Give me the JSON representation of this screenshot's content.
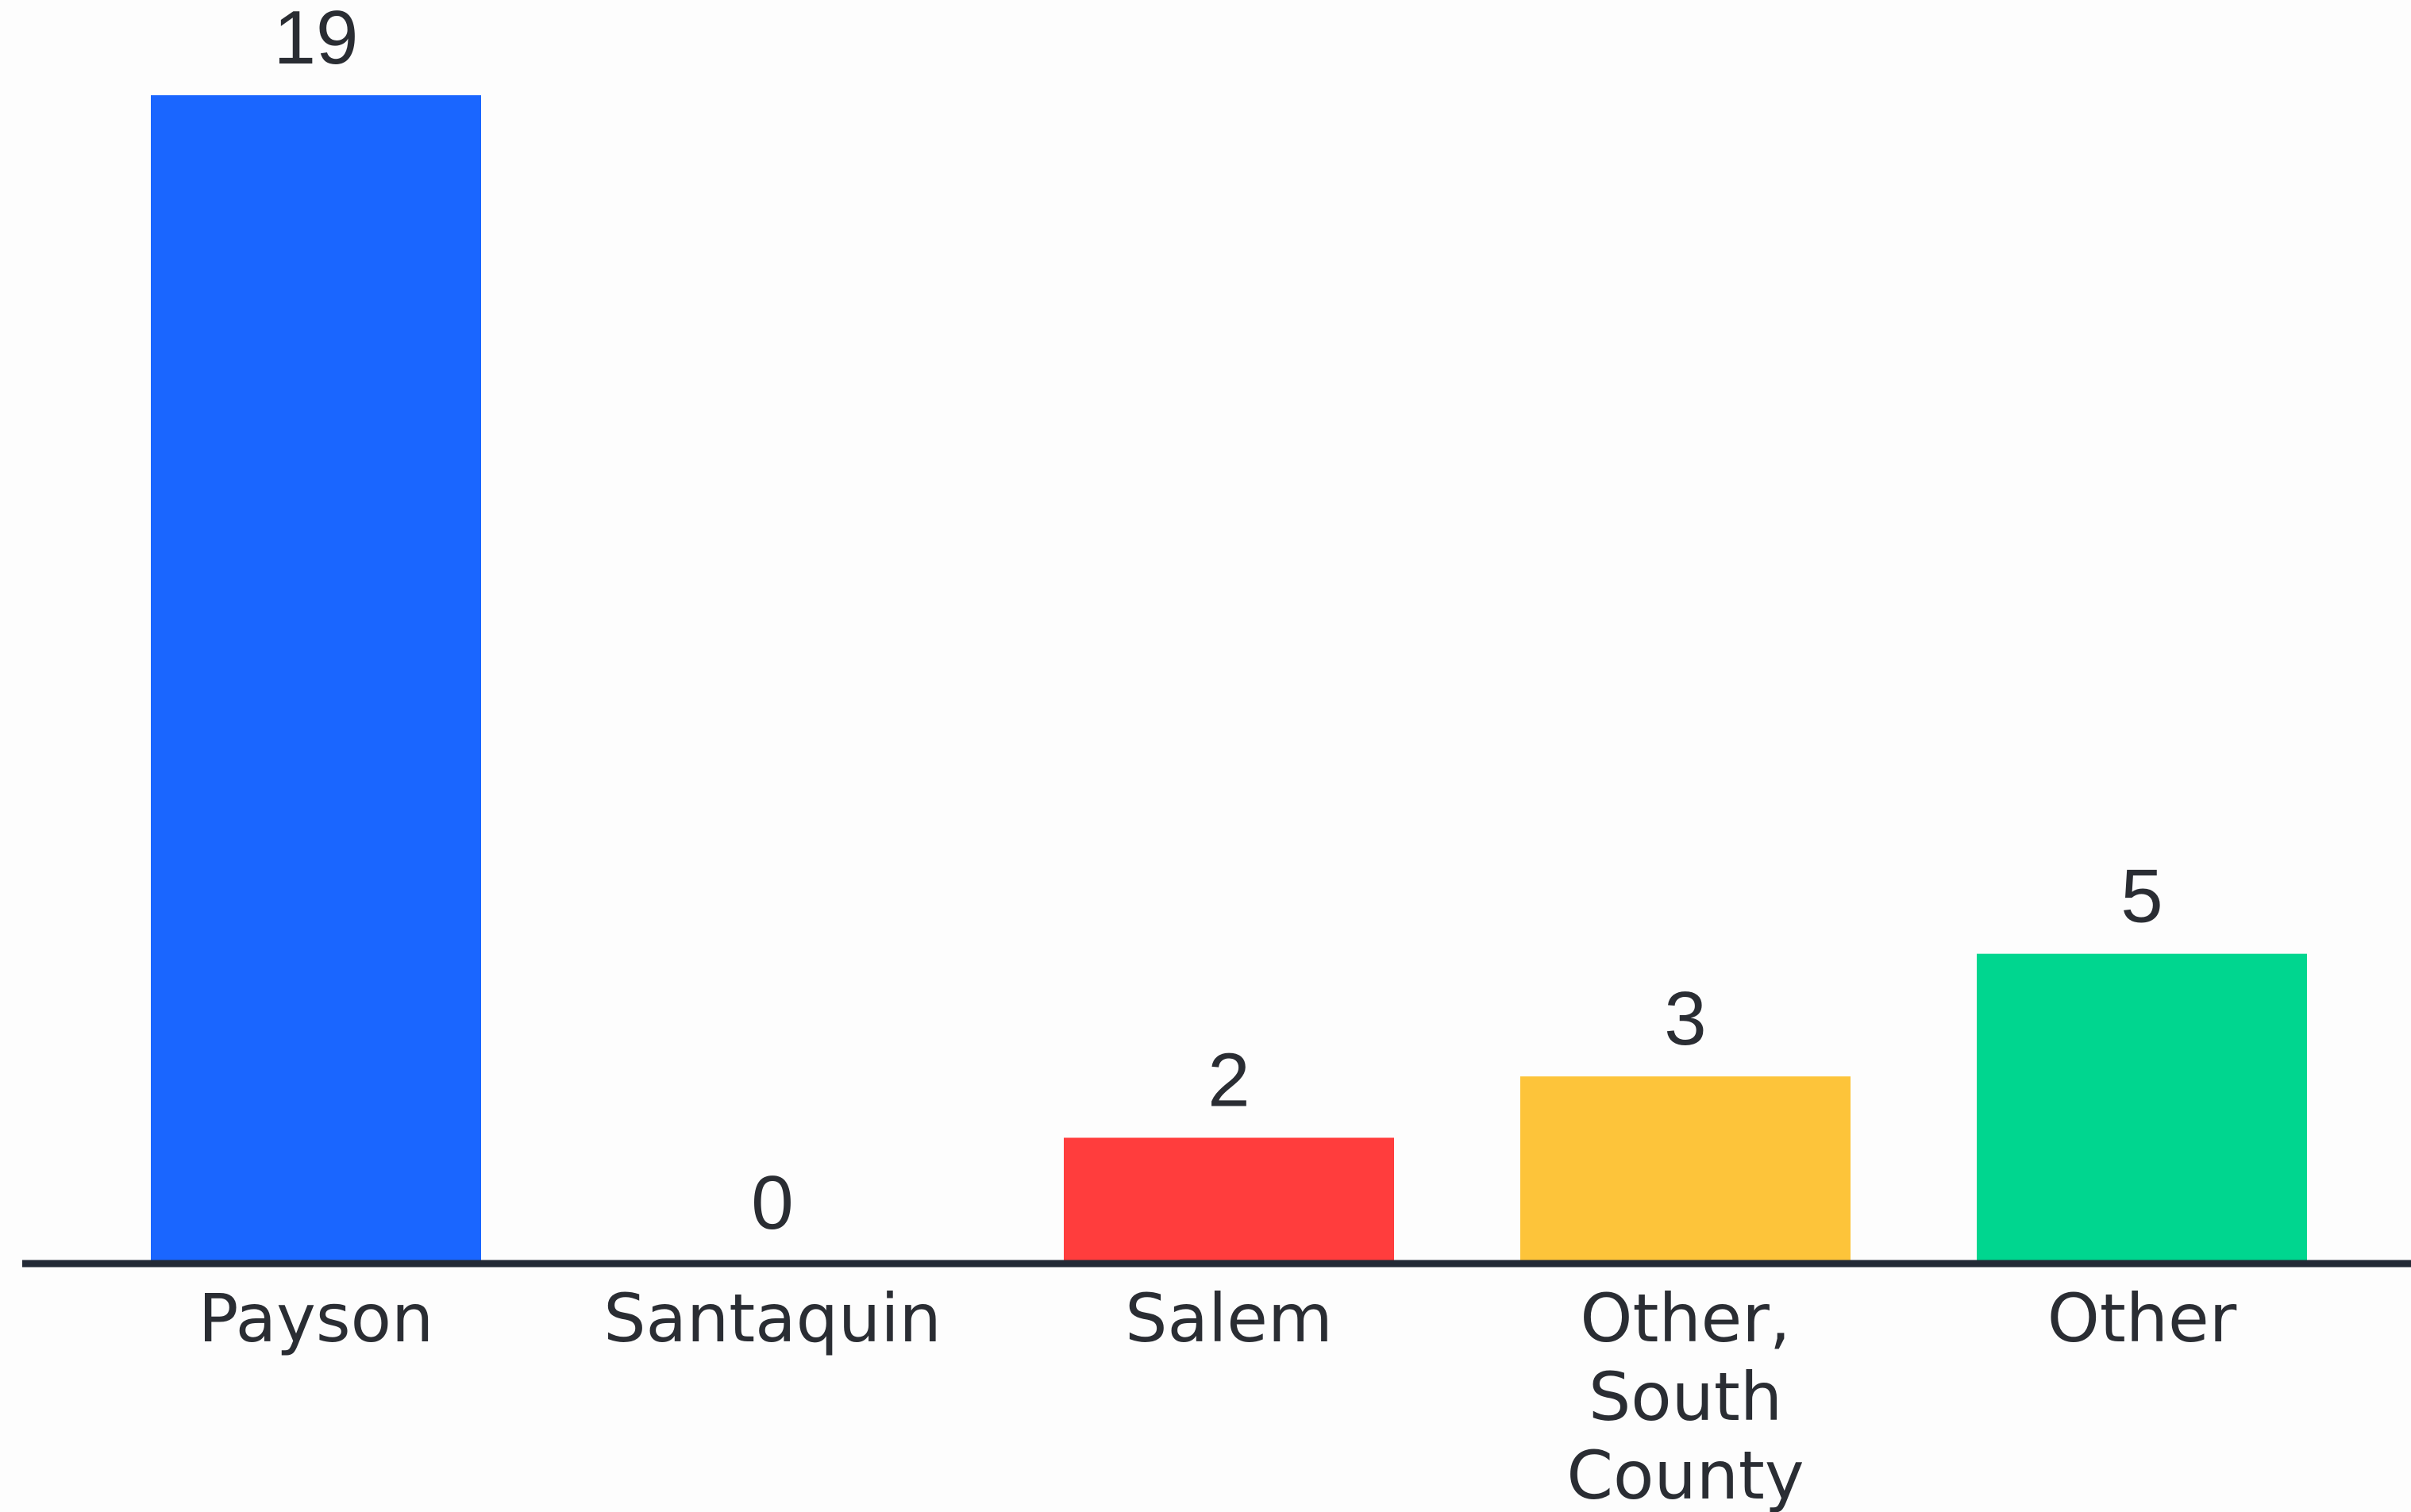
{
  "chart_data": {
    "type": "bar",
    "categories": [
      "Payson",
      "Santaquin",
      "Salem",
      "Other, South County",
      "Other"
    ],
    "category_lines": [
      [
        "Payson"
      ],
      [
        "Santaquin"
      ],
      [
        "Salem"
      ],
      [
        "Other,",
        "South",
        "County"
      ],
      [
        "Other"
      ]
    ],
    "values": [
      19,
      0,
      2,
      3,
      5
    ],
    "data_labels": [
      "19",
      "0",
      "2",
      "3",
      "5"
    ],
    "colors": [
      "#1a66ff",
      "#1a66ff",
      "#ff3d3d",
      "#fdc43a",
      "#00d68f"
    ],
    "title": "",
    "xlabel": "",
    "ylabel": "",
    "ylim": [
      0,
      19
    ],
    "grid": false,
    "legend": "none",
    "axis_color": "#232a36"
  }
}
